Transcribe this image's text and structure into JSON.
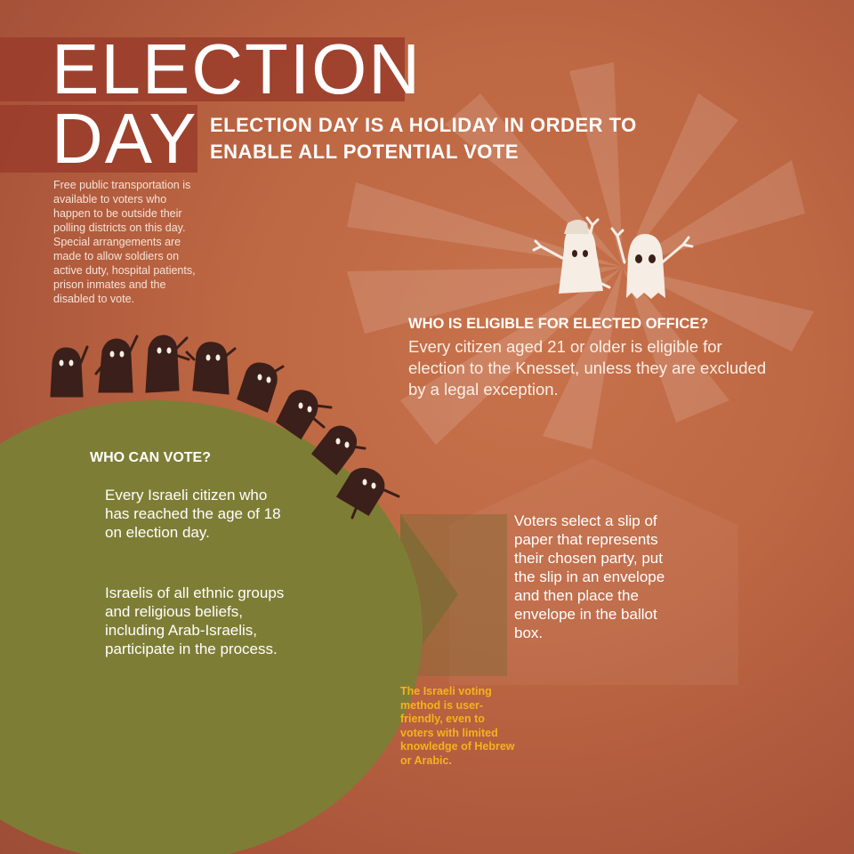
{
  "title": {
    "line1": "ELECTION",
    "line2": "DAY"
  },
  "subtitle": "ELECTION DAY IS A HOLIDAY IN ORDER TO ENABLE ALL POTENTIAL VOTE",
  "transport_note": "Free public transportation is available to voters who happen to be outside their polling districts on this day. Special arrangements are made to allow soldiers on active duty, hospital patients, prison inmates and the disabled to vote.",
  "eligible": {
    "heading": "WHO IS ELIGIBLE FOR ELECTED OFFICE?",
    "body": "Every citizen aged 21 or older is eligible for election to the Knesset, unless they are excluded by a legal exception."
  },
  "can_vote": {
    "heading": "WHO CAN VOTE?",
    "body_1": "Every Israeli citizen who has reached the age of 18 on election day.",
    "body_2": "Israelis of all ethnic groups and religious beliefs, including Arab-Israelis, participate in the process."
  },
  "ballot": {
    "body": "Voters select a slip of paper that represents their chosen party, put the slip in an envelope and then place the envelope in the ballot box.",
    "note": "The Israeli voting method is user-friendly, even to voters with limited knowledge of Hebrew or Arabic."
  },
  "colors": {
    "background": "#bd6743",
    "title_band": "#9a3d2c",
    "circle": "#7e7d35",
    "arrow": "#7d6a33",
    "figure_dark": "#3b1f1a",
    "figure_light": "#f6ede4",
    "note_accent": "#f6b21d"
  },
  "icons": {
    "sunburst": "sunburst-rays-icon",
    "happy_figures": "cheering-ghost-figures-icon",
    "voter_figures": "voter-figures-icon",
    "arrow": "right-arrow-icon"
  }
}
